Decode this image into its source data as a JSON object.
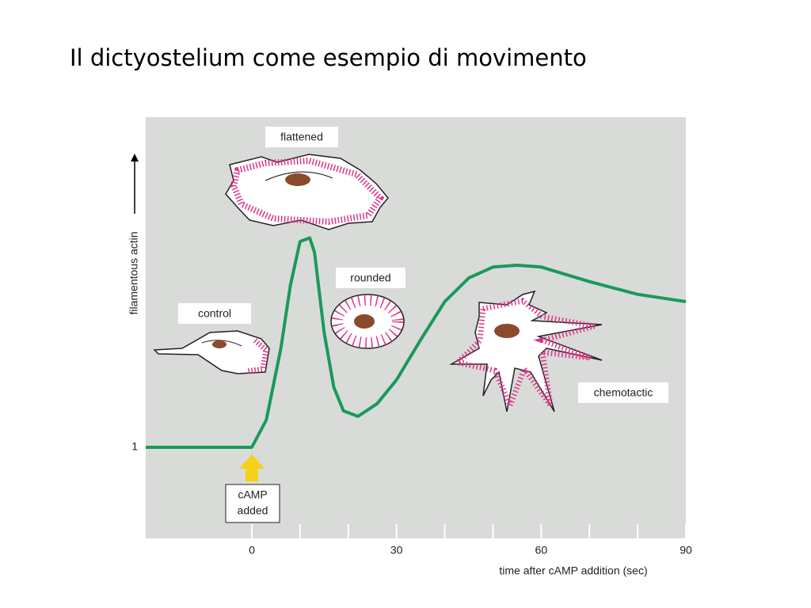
{
  "chart_data": {
    "type": "line",
    "title": "Il dictyostelium come esempio di movimento",
    "xlabel": "time after cAMP addition (sec)",
    "ylabel": "filamentous actin",
    "x": [
      -22,
      0,
      3,
      6,
      8,
      10,
      12,
      13,
      15,
      17,
      19,
      22,
      26,
      30,
      35,
      40,
      45,
      50,
      55,
      60,
      70,
      80,
      90
    ],
    "series": [
      {
        "name": "filamentous actin",
        "color": "#1a9a5a",
        "values": [
          1,
          1,
          1.15,
          1.54,
          1.89,
          2.13,
          2.15,
          2.07,
          1.63,
          1.33,
          1.2,
          1.17,
          1.24,
          1.37,
          1.59,
          1.8,
          1.93,
          1.99,
          2.0,
          1.99,
          1.91,
          1.84,
          1.8
        ]
      }
    ],
    "xlim": [
      -22,
      90
    ],
    "xticks": [
      0,
      30,
      60,
      90
    ],
    "xminor_ticks": [
      10,
      20,
      40,
      50,
      70,
      80
    ],
    "ylim": [
      0.5,
      2.8
    ],
    "yticks": [
      1
    ],
    "annotations": [
      "flattened",
      "rounded",
      "control",
      "chemotactic",
      "cAMP",
      "added"
    ]
  }
}
